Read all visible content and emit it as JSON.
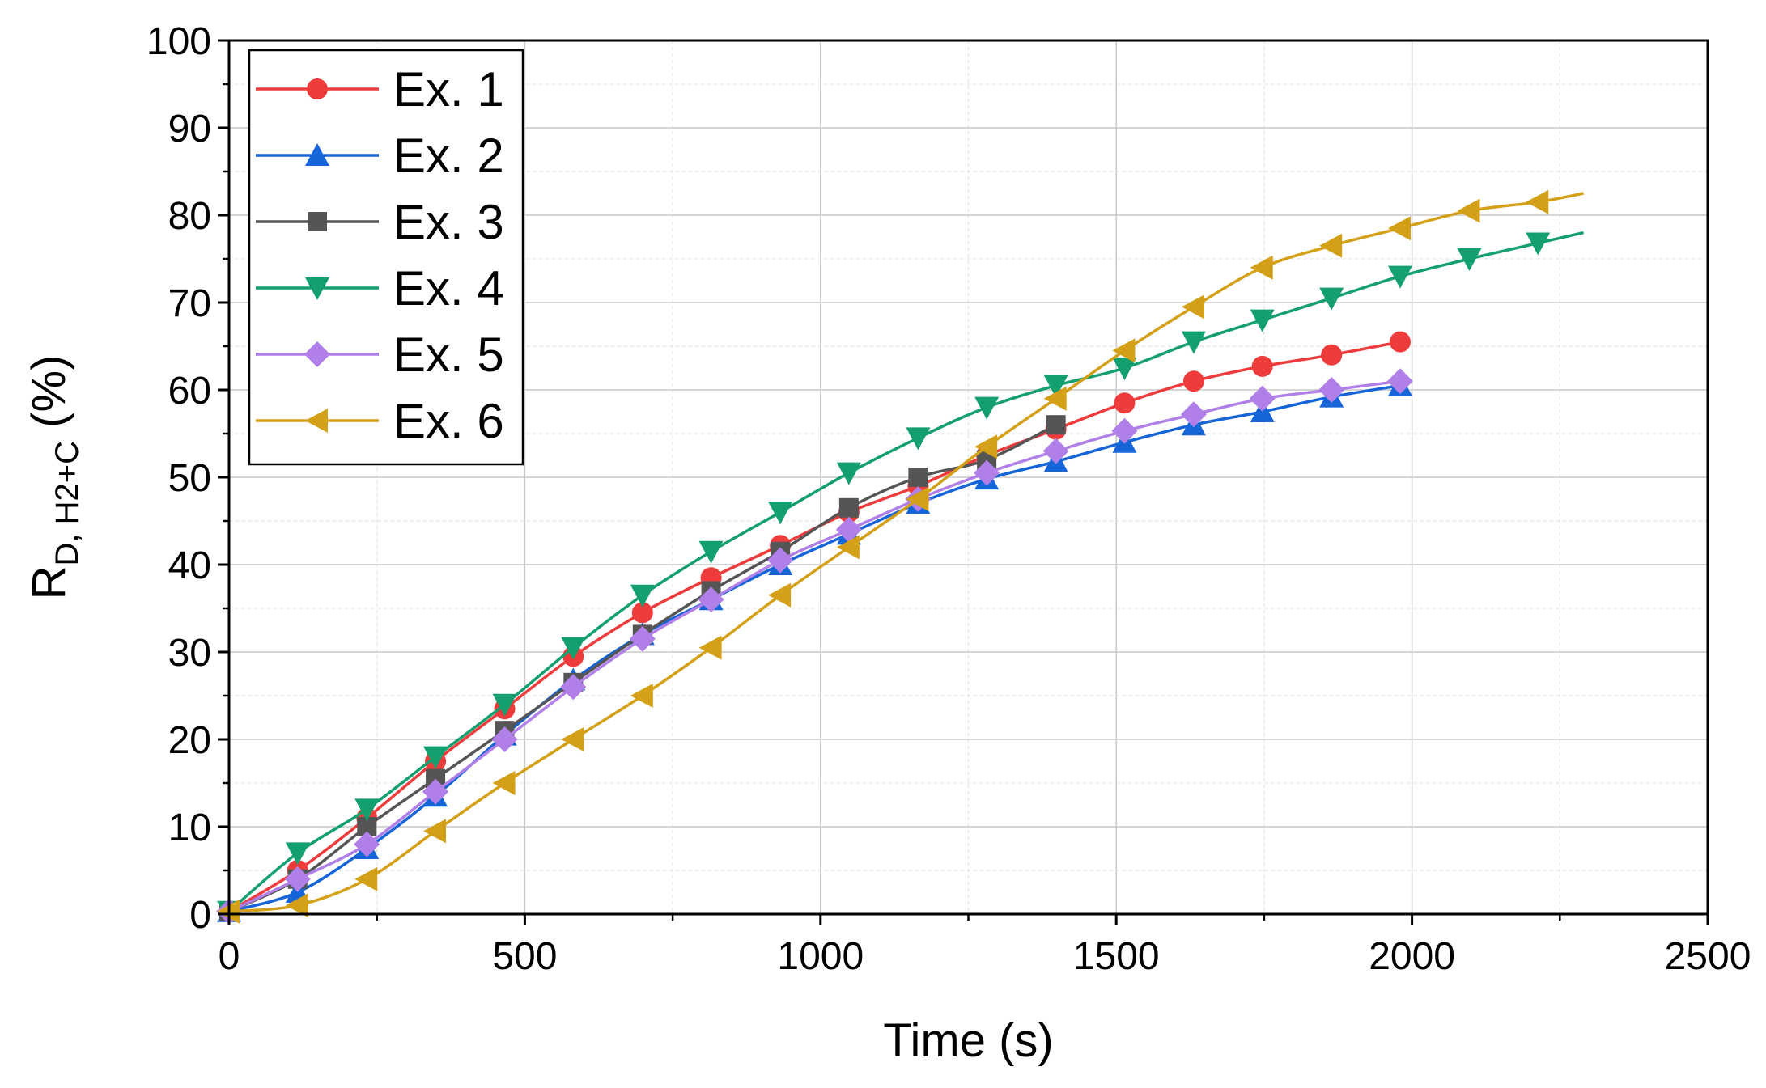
{
  "chart_data": {
    "type": "line",
    "title": "",
    "xlabel": "Time (s)",
    "ylabel": {
      "main": "R",
      "subscript": "D, H2+C",
      "suffix": " (%)"
    },
    "xlim": [
      0,
      2500
    ],
    "ylim": [
      0,
      100
    ],
    "xticks": [
      0,
      500,
      1000,
      1500,
      2000,
      2500
    ],
    "yticks": [
      0,
      10,
      20,
      30,
      40,
      50,
      60,
      70,
      80,
      90,
      100
    ],
    "grid": true,
    "legend_position": "top-left",
    "series": [
      {
        "name": "Ex. 1",
        "color": "#ee3b3b",
        "marker": "circle",
        "x": [
          0,
          116,
          233,
          349,
          466,
          582,
          699,
          815,
          932,
          1048,
          1165,
          1281,
          1398,
          1514,
          1631,
          1747,
          1864,
          1980
        ],
        "y": [
          0.3,
          5.0,
          11.0,
          17.5,
          23.5,
          29.5,
          34.5,
          38.5,
          42.2,
          46.0,
          49.0,
          52.5,
          55.5,
          58.5,
          61.0,
          62.7,
          64.0,
          65.5
        ]
      },
      {
        "name": "Ex. 2",
        "color": "#1565d8",
        "marker": "triangle-up",
        "x": [
          0,
          116,
          233,
          349,
          466,
          582,
          699,
          815,
          932,
          1048,
          1165,
          1281,
          1398,
          1514,
          1631,
          1747,
          1864,
          1980
        ],
        "y": [
          0.3,
          2.5,
          7.5,
          13.5,
          20.5,
          26.8,
          32.0,
          36.0,
          40.0,
          43.5,
          47.0,
          49.8,
          51.8,
          54.0,
          56.0,
          57.5,
          59.2,
          60.5
        ]
      },
      {
        "name": "Ex. 3",
        "color": "#555555",
        "marker": "square",
        "x": [
          0,
          116,
          233,
          349,
          466,
          582,
          699,
          815,
          932,
          1048,
          1165,
          1281,
          1398
        ],
        "y": [
          0.3,
          4.0,
          10.0,
          15.5,
          21.0,
          26.5,
          32.0,
          37.0,
          41.5,
          46.5,
          50.0,
          52.0,
          56.0
        ]
      },
      {
        "name": "Ex. 4",
        "color": "#139f6e",
        "marker": "triangle-down",
        "x": [
          0,
          116,
          233,
          349,
          466,
          582,
          699,
          815,
          932,
          1048,
          1165,
          1281,
          1398,
          1514,
          1631,
          1747,
          1864,
          1980,
          2097,
          2213,
          2290
        ],
        "y": [
          0.3,
          7.0,
          12.0,
          18.0,
          24.0,
          30.5,
          36.5,
          41.5,
          46.0,
          50.5,
          54.5,
          58.0,
          60.5,
          62.5,
          65.5,
          68.0,
          70.5,
          73.0,
          75.0,
          76.8,
          78.0
        ]
      },
      {
        "name": "Ex. 5",
        "color": "#b07fe8",
        "marker": "diamond",
        "x": [
          0,
          116,
          233,
          349,
          466,
          582,
          699,
          815,
          932,
          1048,
          1165,
          1281,
          1398,
          1514,
          1631,
          1747,
          1864,
          1980
        ],
        "y": [
          0.3,
          4.0,
          8.0,
          14.0,
          20.0,
          26.0,
          31.5,
          36.0,
          40.5,
          44.0,
          47.5,
          50.5,
          53.0,
          55.3,
          57.2,
          59.0,
          60.0,
          61.0
        ]
      },
      {
        "name": "Ex. 6",
        "color": "#d4a017",
        "marker": "triangle-left",
        "x": [
          0,
          116,
          233,
          349,
          466,
          582,
          699,
          815,
          932,
          1048,
          1165,
          1281,
          1398,
          1514,
          1631,
          1747,
          1864,
          1980,
          2097,
          2213,
          2290
        ],
        "y": [
          0.3,
          1.0,
          4.0,
          9.5,
          15.0,
          20.0,
          25.0,
          30.5,
          36.5,
          42.0,
          47.5,
          53.5,
          59.0,
          64.5,
          69.5,
          74.0,
          76.5,
          78.5,
          80.5,
          81.5,
          82.5
        ]
      }
    ]
  }
}
